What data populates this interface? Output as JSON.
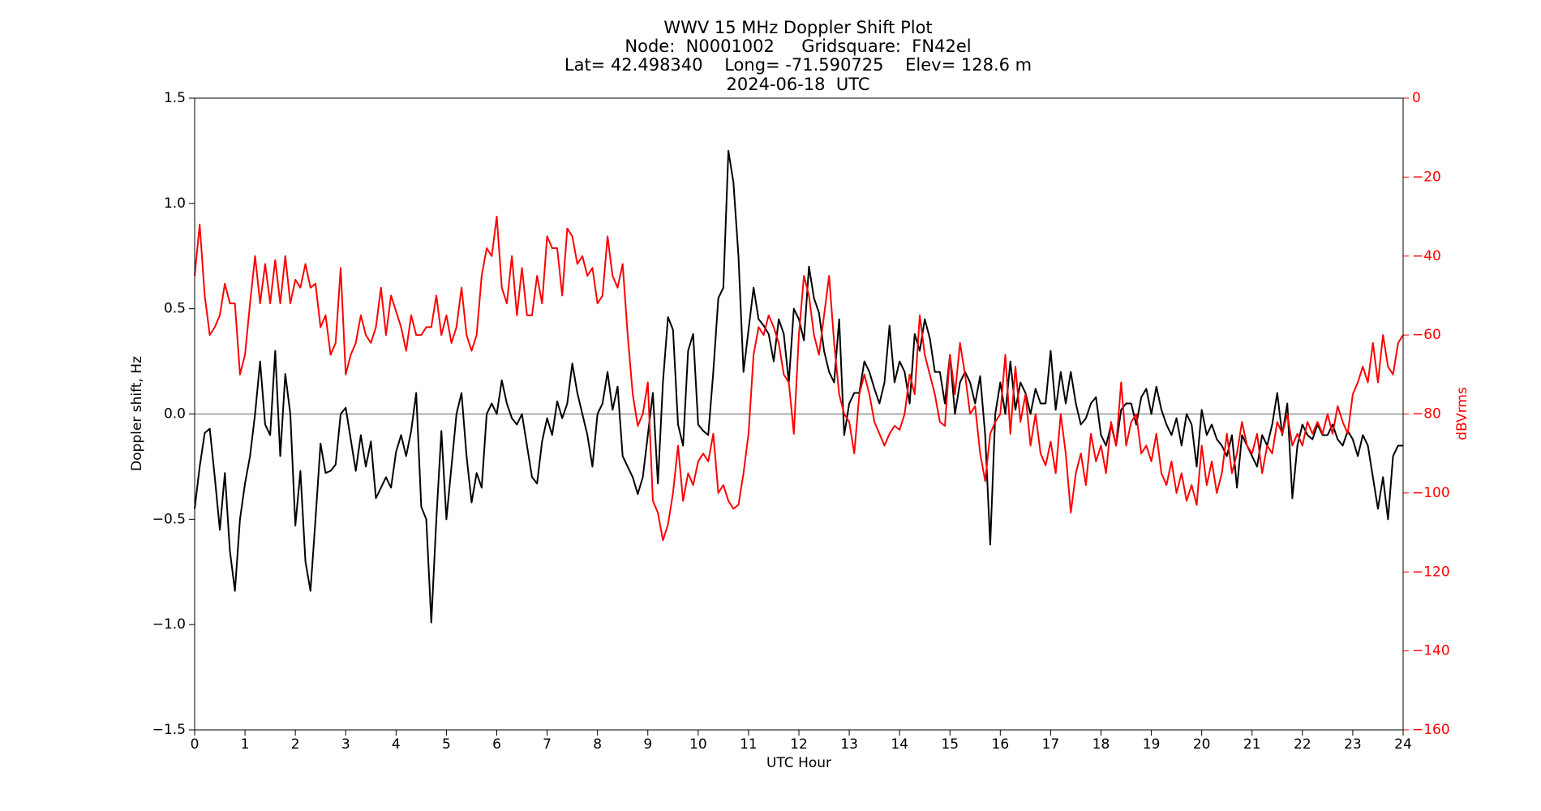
{
  "chart_data": {
    "type": "line",
    "title": "WWV 15 MHz Doppler Shift Plot",
    "subtitle": [
      "Node:  N0001002     Gridsquare:  FN42el",
      "Lat= 42.498340    Long= -71.590725    Elev= 128.6 m",
      "2024-06-18  UTC"
    ],
    "xlabel": "UTC Hour",
    "ylabel": "Doppler shift, Hz",
    "y2label": "dBVrms",
    "xlim": [
      0,
      24
    ],
    "xticks": [
      0,
      1,
      2,
      3,
      4,
      5,
      6,
      7,
      8,
      9,
      10,
      11,
      12,
      13,
      14,
      15,
      16,
      17,
      18,
      19,
      20,
      21,
      22,
      23,
      24
    ],
    "ylim": [
      -1.5,
      1.5
    ],
    "yticks": [
      {
        "value": -1.5,
        "label": "−1.5"
      },
      {
        "value": -1,
        "label": "−1.0"
      },
      {
        "value": -0.5,
        "label": "−0.5"
      },
      {
        "value": 0,
        "label": "0.0"
      },
      0.5,
      {
        "value": 1,
        "label": "1.0"
      },
      1.5
    ],
    "y2lim": [
      -160,
      0
    ],
    "y2ticks": [
      {
        "value": -160,
        "label": "−160"
      },
      {
        "value": -140,
        "label": "−140"
      },
      {
        "value": -120,
        "label": "−120"
      },
      {
        "value": -100,
        "label": "−100"
      },
      {
        "value": -80,
        "label": "−80"
      },
      {
        "value": -60,
        "label": "−60"
      },
      {
        "value": -40,
        "label": "−40"
      },
      {
        "value": -20,
        "label": "−20"
      },
      0
    ],
    "hline": 0,
    "x": [
      0,
      0.1,
      0.2,
      0.3,
      0.4,
      0.5,
      0.6,
      0.7,
      0.8,
      0.9,
      1,
      1.1,
      1.2,
      1.3,
      1.4,
      1.5,
      1.6,
      1.7,
      1.8,
      1.9,
      2,
      2.1,
      2.2,
      2.3,
      2.4,
      2.5,
      2.6,
      2.7,
      2.8,
      2.9,
      3,
      3.1,
      3.2,
      3.3,
      3.4,
      3.5,
      3.6,
      3.7,
      3.8,
      3.9,
      4,
      4.1,
      4.2,
      4.3,
      4.4,
      4.5,
      4.6,
      4.7,
      4.8,
      4.9,
      5,
      5.1,
      5.2,
      5.3,
      5.4,
      5.5,
      5.6,
      5.7,
      5.8,
      5.9,
      6,
      6.1,
      6.2,
      6.3,
      6.4,
      6.5,
      6.6,
      6.7,
      6.8,
      6.9,
      7,
      7.1,
      7.2,
      7.3,
      7.4,
      7.5,
      7.6,
      7.7,
      7.8,
      7.9,
      8,
      8.1,
      8.2,
      8.3,
      8.4,
      8.5,
      8.6,
      8.7,
      8.8,
      8.9,
      9,
      9.1,
      9.2,
      9.3,
      9.4,
      9.5,
      9.6,
      9.7,
      9.8,
      9.9,
      10,
      10.1,
      10.2,
      10.3,
      10.4,
      10.5,
      10.6,
      10.7,
      10.8,
      10.9,
      11,
      11.1,
      11.2,
      11.3,
      11.4,
      11.5,
      11.6,
      11.7,
      11.8,
      11.9,
      12,
      12.1,
      12.2,
      12.3,
      12.4,
      12.5,
      12.6,
      12.7,
      12.8,
      12.9,
      13,
      13.1,
      13.2,
      13.3,
      13.4,
      13.5,
      13.6,
      13.7,
      13.8,
      13.9,
      14,
      14.1,
      14.2,
      14.3,
      14.4,
      14.5,
      14.6,
      14.7,
      14.8,
      14.9,
      15,
      15.1,
      15.2,
      15.3,
      15.4,
      15.5,
      15.6,
      15.7,
      15.8,
      15.9,
      16,
      16.1,
      16.2,
      16.3,
      16.4,
      16.5,
      16.6,
      16.7,
      16.8,
      16.9,
      17,
      17.1,
      17.2,
      17.3,
      17.4,
      17.5,
      17.6,
      17.7,
      17.8,
      17.9,
      18,
      18.1,
      18.2,
      18.3,
      18.4,
      18.5,
      18.6,
      18.7,
      18.8,
      18.9,
      19,
      19.1,
      19.2,
      19.3,
      19.4,
      19.5,
      19.6,
      19.7,
      19.8,
      19.9,
      20,
      20.1,
      20.2,
      20.3,
      20.4,
      20.5,
      20.6,
      20.7,
      20.8,
      20.9,
      21,
      21.1,
      21.2,
      21.3,
      21.4,
      21.5,
      21.6,
      21.7,
      21.8,
      21.9,
      22,
      22.1,
      22.2,
      22.3,
      22.4,
      22.5,
      22.6,
      22.7,
      22.8,
      22.9,
      23,
      23.1,
      23.2,
      23.3,
      23.4,
      23.5,
      23.6,
      23.7,
      23.8,
      23.9,
      24
    ],
    "series": [
      {
        "color": "#000000",
        "values": [
          -0.45,
          -0.25,
          -0.09,
          -0.07,
          -0.3,
          -0.55,
          -0.28,
          -0.65,
          -0.84,
          -0.5,
          -0.33,
          -0.2,
          0.0,
          0.25,
          -0.05,
          -0.1,
          0.3,
          -0.2,
          0.19,
          0.0,
          -0.53,
          -0.27,
          -0.7,
          -0.84,
          -0.5,
          -0.14,
          -0.28,
          -0.27,
          -0.24,
          0.0,
          0.03,
          -0.12,
          -0.27,
          -0.1,
          -0.25,
          -0.13,
          -0.4,
          -0.35,
          -0.3,
          -0.35,
          -0.18,
          -0.1,
          -0.2,
          -0.08,
          0.1,
          -0.44,
          -0.5,
          -0.99,
          -0.5,
          -0.08,
          -0.5,
          -0.25,
          0.0,
          0.1,
          -0.2,
          -0.42,
          -0.28,
          -0.35,
          0.0,
          0.05,
          0.0,
          0.16,
          0.05,
          -0.02,
          -0.05,
          0.0,
          -0.15,
          -0.3,
          -0.33,
          -0.13,
          -0.02,
          -0.1,
          0.06,
          -0.02,
          0.05,
          0.24,
          0.1,
          0.0,
          -0.1,
          -0.25,
          0.0,
          0.05,
          0.2,
          0.02,
          0.13,
          -0.2,
          -0.25,
          -0.3,
          -0.38,
          -0.3,
          -0.1,
          0.1,
          -0.33,
          0.15,
          0.46,
          0.4,
          -0.05,
          -0.15,
          0.3,
          0.38,
          -0.05,
          -0.08,
          -0.1,
          0.2,
          0.55,
          0.6,
          1.25,
          1.1,
          0.75,
          0.2,
          0.4,
          0.6,
          0.45,
          0.42,
          0.38,
          0.25,
          0.45,
          0.38,
          0.15,
          0.5,
          0.45,
          0.35,
          0.7,
          0.55,
          0.48,
          0.3,
          0.2,
          0.15,
          0.45,
          -0.1,
          0.05,
          0.1,
          0.1,
          0.25,
          0.2,
          0.12,
          0.05,
          0.15,
          0.42,
          0.15,
          0.25,
          0.2,
          0.05,
          0.38,
          0.3,
          0.45,
          0.36,
          0.2,
          0.2,
          0.05,
          0.28,
          0.0,
          0.15,
          0.2,
          0.15,
          0.05,
          0.18,
          -0.1,
          -0.62,
          0.0,
          0.15,
          0.0,
          0.25,
          0.02,
          0.15,
          0.1,
          0.0,
          0.12,
          0.05,
          0.05,
          0.3,
          0.02,
          0.2,
          0.05,
          0.2,
          0.05,
          -0.05,
          -0.02,
          0.05,
          0.08,
          -0.1,
          -0.15,
          -0.05,
          -0.15,
          0.02,
          0.05,
          0.05,
          -0.05,
          0.08,
          0.12,
          0.0,
          0.13,
          0.02,
          -0.05,
          -0.1,
          -0.02,
          -0.15,
          0.0,
          -0.05,
          -0.25,
          0.02,
          -0.1,
          -0.05,
          -0.12,
          -0.15,
          -0.2,
          -0.1,
          -0.35,
          -0.1,
          -0.15,
          -0.2,
          -0.25,
          -0.1,
          -0.15,
          -0.05,
          0.1,
          -0.1,
          0.05,
          -0.4,
          -0.15,
          -0.05,
          -0.1,
          -0.12,
          -0.05,
          -0.1,
          -0.1,
          -0.05,
          -0.12,
          -0.15,
          -0.08,
          -0.12,
          -0.2,
          -0.1,
          -0.15,
          -0.3,
          -0.45,
          -0.3,
          -0.5,
          -0.2,
          -0.15,
          -0.15
        ]
      },
      {
        "color": "#ff0000",
        "axis": "y2",
        "values": [
          -45,
          -32,
          -50,
          -60,
          -58,
          -55,
          -47,
          -52,
          -52,
          -70,
          -65,
          -52,
          -40,
          -52,
          -42,
          -52,
          -41,
          -52,
          -40,
          -52,
          -46,
          -48,
          -42,
          -48,
          -47,
          -58,
          -55,
          -65,
          -62,
          -43,
          -70,
          -65,
          -62,
          -55,
          -60,
          -62,
          -58,
          -48,
          -60,
          -50,
          -54,
          -58,
          -64,
          -55,
          -60,
          -60,
          -58,
          -58,
          -50,
          -60,
          -55,
          -62,
          -58,
          -48,
          -60,
          -64,
          -60,
          -45,
          -38,
          -40,
          -30,
          -48,
          -52,
          -40,
          -55,
          -43,
          -55,
          -55,
          -45,
          -52,
          -35,
          -38,
          -38,
          -50,
          -33,
          -35,
          -42,
          -40,
          -45,
          -43,
          -52,
          -50,
          -35,
          -45,
          -48,
          -42,
          -60,
          -75,
          -83,
          -80,
          -72,
          -102,
          -105,
          -112,
          -108,
          -100,
          -88,
          -102,
          -95,
          -98,
          -92,
          -90,
          -92,
          -85,
          -100,
          -98,
          -102,
          -104,
          -103,
          -95,
          -85,
          -65,
          -58,
          -60,
          -55,
          -58,
          -62,
          -70,
          -72,
          -85,
          -60,
          -45,
          -50,
          -60,
          -65,
          -55,
          -45,
          -62,
          -75,
          -80,
          -82,
          -90,
          -75,
          -70,
          -75,
          -82,
          -85,
          -88,
          -85,
          -83,
          -84,
          -80,
          -70,
          -75,
          -55,
          -65,
          -70,
          -75,
          -82,
          -83,
          -65,
          -75,
          -62,
          -70,
          -80,
          -78,
          -90,
          -97,
          -85,
          -82,
          -80,
          -65,
          -85,
          -68,
          -82,
          -75,
          -88,
          -80,
          -90,
          -93,
          -87,
          -95,
          -80,
          -90,
          -105,
          -95,
          -90,
          -98,
          -85,
          -92,
          -88,
          -95,
          -82,
          -88,
          -72,
          -88,
          -82,
          -80,
          -90,
          -88,
          -92,
          -85,
          -95,
          -98,
          -92,
          -100,
          -95,
          -102,
          -98,
          -103,
          -88,
          -98,
          -92,
          -100,
          -95,
          -85,
          -95,
          -90,
          -82,
          -88,
          -90,
          -85,
          -95,
          -88,
          -90,
          -82,
          -85,
          -80,
          -88,
          -85,
          -88,
          -82,
          -85,
          -82,
          -85,
          -80,
          -85,
          -78,
          -82,
          -85,
          -75,
          -72,
          -68,
          -72,
          -62,
          -72,
          -60,
          -68,
          -70,
          -62,
          -60
        ]
      }
    ]
  }
}
